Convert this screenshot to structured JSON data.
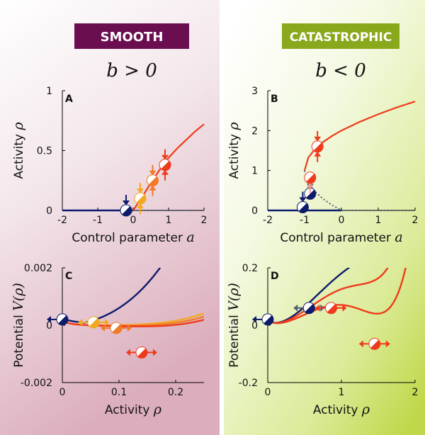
{
  "colors": {
    "smooth_header_bg": "#6b0e50",
    "catastrophic_header_bg": "#8aa81b",
    "navy": "#0d1b6b",
    "red": "#ee3b1b",
    "orange": "#f07a26",
    "amber": "#f2a91f",
    "pink_arrow": "#f09a88",
    "grey": "#555e76",
    "left_bg_top": "#f6ebee",
    "left_bg_bottom": "#e3b9c6",
    "right_bg_top": "#fbfdf4",
    "right_bg_bottom": "#c4dc4f"
  },
  "headers": {
    "smooth": "SMOOTH",
    "catastrophic": "CATASTROPHIC",
    "smooth_condition": "b > 0",
    "catastrophic_condition": "b < 0"
  },
  "chart_data": [
    {
      "panel": "A",
      "type": "line",
      "xlabel": "Control parameter a",
      "ylabel": "Activity ρ",
      "xlim": [
        -2,
        2
      ],
      "ylim": [
        0,
        1
      ],
      "xticks": [
        "-2",
        "-1",
        "0",
        "1",
        "2"
      ],
      "yticks": [
        "0",
        "0.5",
        "1"
      ],
      "series": [
        {
          "style": "stable-zero",
          "x": [
            -2,
            0
          ],
          "y": [
            0,
            0
          ]
        },
        {
          "style": "unstable-zero",
          "x": [
            0,
            2
          ],
          "y": [
            0,
            0
          ]
        },
        {
          "style": "stable-branch",
          "x": [
            0,
            0.25,
            0.5,
            0.75,
            1.0,
            1.25,
            1.5,
            1.75,
            2.0
          ],
          "y": [
            0,
            0.11,
            0.23,
            0.34,
            0.44,
            0.52,
            0.59,
            0.66,
            0.72
          ]
        }
      ],
      "markers": [
        {
          "a": -0.2,
          "rho": 0.0,
          "color": "navy",
          "arrows": [
            "down"
          ]
        },
        {
          "a": 0.2,
          "rho": 0.1,
          "color": "amber",
          "arrows": [
            "down",
            "up"
          ]
        },
        {
          "a": 0.55,
          "rho": 0.25,
          "color": "orange",
          "arrows": [
            "down",
            "up"
          ]
        },
        {
          "a": 0.9,
          "rho": 0.38,
          "color": "red",
          "arrows": [
            "down",
            "up"
          ]
        }
      ]
    },
    {
      "panel": "B",
      "type": "line",
      "xlabel": "Control parameter a",
      "ylabel": "Activity ρ",
      "xlim": [
        -2,
        2
      ],
      "ylim": [
        0,
        3
      ],
      "xticks": [
        "-2",
        "-1",
        "0",
        "1",
        "2"
      ],
      "yticks": [
        "0",
        "1",
        "2",
        "3"
      ],
      "series": [
        {
          "style": "stable-zero",
          "x": [
            -2,
            -1
          ],
          "y": [
            0,
            0
          ]
        },
        {
          "style": "stable-zero-light",
          "x": [
            -1,
            0
          ],
          "y": [
            0,
            0
          ]
        },
        {
          "style": "unstable-zero",
          "x": [
            0,
            2
          ],
          "y": [
            0,
            0
          ]
        },
        {
          "style": "stable-branch",
          "x": [
            -1.0,
            -0.9,
            -0.75,
            -0.5,
            -0.25,
            0.0,
            0.5,
            1.0,
            1.5,
            2.0
          ],
          "y": [
            1.0,
            1.32,
            1.5,
            1.71,
            1.87,
            2.0,
            2.22,
            2.41,
            2.58,
            2.73
          ]
        },
        {
          "style": "unstable-branch",
          "x": [
            -1.0,
            -0.9,
            -0.75,
            -0.5,
            -0.25,
            0.0
          ],
          "y": [
            1.0,
            0.68,
            0.5,
            0.29,
            0.13,
            0.0
          ]
        }
      ],
      "markers": [
        {
          "a": -1.05,
          "rho": 0.08,
          "color": "navy",
          "arrows": [
            "down"
          ]
        },
        {
          "a": -0.85,
          "rho": 0.42,
          "color": "navy",
          "arrows": [
            "down"
          ]
        },
        {
          "a": -0.85,
          "rho": 0.82,
          "color": "red",
          "arrows": [
            "up"
          ]
        },
        {
          "a": -0.65,
          "rho": 1.6,
          "color": "red",
          "arrows": [
            "down",
            "up"
          ]
        }
      ]
    },
    {
      "panel": "C",
      "type": "line",
      "xlabel": "Activity ρ",
      "ylabel": "Potential V(ρ)",
      "xlim": [
        0,
        0.25
      ],
      "ylim": [
        -0.002,
        0.002
      ],
      "xticks": [
        "0",
        "0.1",
        "0.2"
      ],
      "yticks": [
        "-0.002",
        "0",
        "0.002"
      ],
      "series": [
        {
          "color": "navy",
          "a": -0.2
        },
        {
          "color": "amber",
          "a": 0.2
        },
        {
          "color": "orange",
          "a": 0.55
        },
        {
          "color": "red",
          "a": 0.9
        }
      ],
      "markers": [
        {
          "rho": 0.0,
          "V": 0.0002,
          "color": "navy",
          "arrows": [
            "left"
          ]
        },
        {
          "rho": 0.055,
          "V": 0.0001,
          "color": "amber",
          "arrows": [
            "left",
            "right"
          ]
        },
        {
          "rho": 0.095,
          "V": -0.0001,
          "color": "orange",
          "arrows": [
            "left",
            "right"
          ]
        },
        {
          "rho": 0.14,
          "V": -0.00095,
          "color": "red",
          "arrows": [
            "left",
            "right"
          ]
        }
      ]
    },
    {
      "panel": "D",
      "type": "line",
      "xlabel": "Activity ρ",
      "ylabel": "Potential V(ρ)",
      "xlim": [
        0,
        2
      ],
      "ylim": [
        -0.2,
        0.2
      ],
      "xticks": [
        "0",
        "1",
        "2"
      ],
      "yticks": [
        "-0.2",
        "0",
        "0.2"
      ],
      "series": [
        {
          "color": "navy",
          "a": -1.05
        },
        {
          "color": "red",
          "a": -0.85
        },
        {
          "color": "red",
          "a": -0.65
        }
      ],
      "markers": [
        {
          "rho": 0.0,
          "V": 0.02,
          "color": "navy",
          "arrows": [
            "left"
          ]
        },
        {
          "rho": 0.56,
          "V": 0.06,
          "color": "navy",
          "arrows": [
            "left",
            "right"
          ]
        },
        {
          "rho": 0.86,
          "V": 0.06,
          "color": "red",
          "arrows": [
            "left",
            "right"
          ]
        },
        {
          "rho": 1.45,
          "V": -0.065,
          "color": "red",
          "arrows": [
            "left",
            "right"
          ]
        }
      ]
    }
  ]
}
